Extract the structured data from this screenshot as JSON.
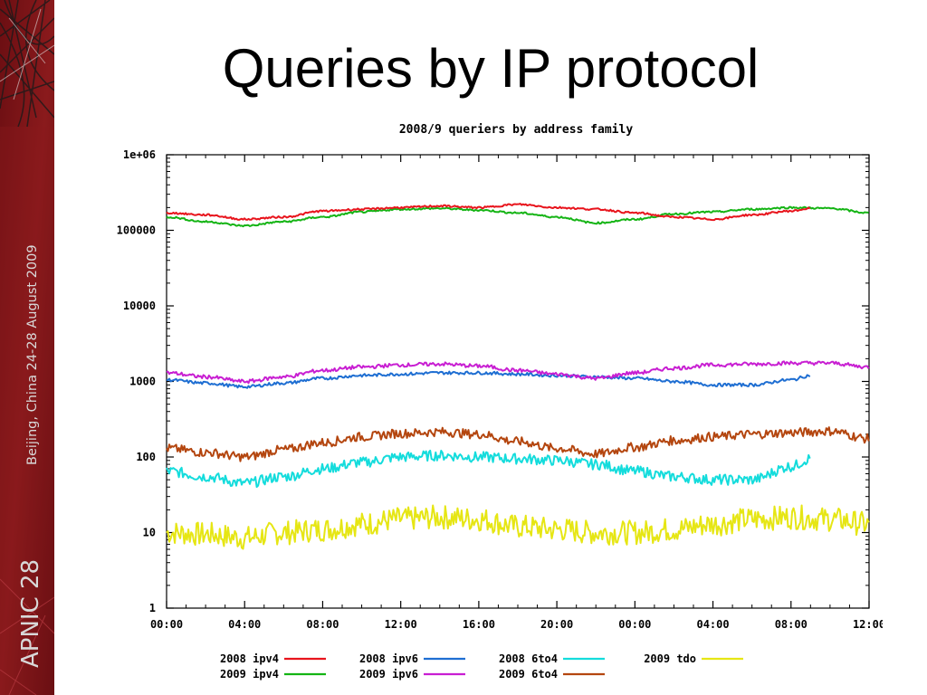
{
  "slide": {
    "title": "Queries by IP protocol",
    "sidebar_event": "APNIC 28",
    "sidebar_location_date": "Beijing, China  24-28 August 2009"
  },
  "chart_data": {
    "type": "line",
    "title": "2008/9 queriers by address family",
    "xlabel": "",
    "ylabel": "",
    "yscale": "log",
    "ylim": [
      1,
      1000000
    ],
    "y_ticks": [
      "1",
      "10",
      "100",
      "1000",
      "10000",
      "100000",
      "1e+06"
    ],
    "y_tick_values": [
      1,
      10,
      100,
      1000,
      10000,
      100000,
      1000000
    ],
    "x_tick_labels": [
      "00:00",
      "04:00",
      "08:00",
      "12:00",
      "16:00",
      "20:00",
      "00:00",
      "04:00",
      "08:00",
      "12:00"
    ],
    "x_range_hours": [
      0,
      36
    ],
    "grid": false,
    "legend_position": "bottom",
    "series": [
      {
        "name": "2008 ipv4",
        "color": "#e8141c",
        "x": [
          0,
          2,
          4,
          6,
          8,
          10,
          12,
          14,
          16,
          18,
          20,
          22,
          24,
          26,
          28,
          30,
          32,
          33
        ],
        "y": [
          170000,
          160000,
          140000,
          150000,
          180000,
          190000,
          200000,
          210000,
          200000,
          220000,
          200000,
          190000,
          170000,
          150000,
          140000,
          160000,
          180000,
          195000
        ]
      },
      {
        "name": "2009 ipv4",
        "color": "#14b414",
        "x": [
          0,
          2,
          4,
          6,
          8,
          10,
          12,
          14,
          16,
          18,
          20,
          22,
          24,
          26,
          28,
          30,
          32,
          34,
          36
        ],
        "y": [
          150000,
          130000,
          115000,
          130000,
          150000,
          175000,
          190000,
          195000,
          185000,
          170000,
          150000,
          125000,
          140000,
          165000,
          175000,
          190000,
          200000,
          195000,
          170000
        ]
      },
      {
        "name": "2008 ipv6",
        "color": "#1e6ed2",
        "x": [
          0,
          2,
          4,
          6,
          8,
          10,
          12,
          14,
          16,
          18,
          20,
          22,
          24,
          26,
          28,
          30,
          32,
          33
        ],
        "y": [
          1050,
          950,
          850,
          950,
          1100,
          1200,
          1250,
          1300,
          1300,
          1250,
          1200,
          1150,
          1100,
          1000,
          900,
          900,
          1050,
          1200
        ]
      },
      {
        "name": "2009 ipv6",
        "color": "#c81ed2",
        "x": [
          0,
          2,
          4,
          6,
          8,
          10,
          12,
          14,
          16,
          18,
          20,
          22,
          24,
          26,
          28,
          30,
          32,
          34,
          36
        ],
        "y": [
          1300,
          1150,
          1000,
          1150,
          1400,
          1550,
          1650,
          1700,
          1600,
          1400,
          1250,
          1100,
          1300,
          1500,
          1650,
          1700,
          1750,
          1750,
          1550
        ]
      },
      {
        "name": "2009 6to4",
        "color": "#b4460f",
        "x": [
          0,
          2,
          4,
          6,
          8,
          10,
          12,
          14,
          16,
          18,
          20,
          22,
          24,
          26,
          28,
          30,
          32,
          34,
          36
        ],
        "y": [
          130,
          115,
          100,
          125,
          155,
          185,
          205,
          215,
          200,
          160,
          130,
          110,
          135,
          165,
          185,
          200,
          210,
          220,
          175
        ]
      },
      {
        "name": "2008 6to4",
        "color": "#14dcdc",
        "x": [
          0,
          2,
          4,
          6,
          8,
          10,
          12,
          14,
          16,
          18,
          20,
          22,
          24,
          26,
          28,
          30,
          32,
          33
        ],
        "y": [
          65,
          55,
          45,
          55,
          70,
          85,
          100,
          105,
          100,
          95,
          90,
          80,
          65,
          55,
          50,
          50,
          75,
          95
        ]
      },
      {
        "name": "2009  tdo",
        "color": "#e6e614",
        "x": [
          0,
          2,
          4,
          6,
          8,
          10,
          12,
          14,
          16,
          18,
          20,
          22,
          24,
          26,
          28,
          30,
          32,
          34,
          36
        ],
        "y": [
          10,
          9.5,
          8.5,
          10,
          11,
          13,
          15,
          16,
          15,
          12,
          11,
          10,
          10,
          11,
          13,
          15,
          16,
          15,
          13
        ]
      }
    ]
  }
}
